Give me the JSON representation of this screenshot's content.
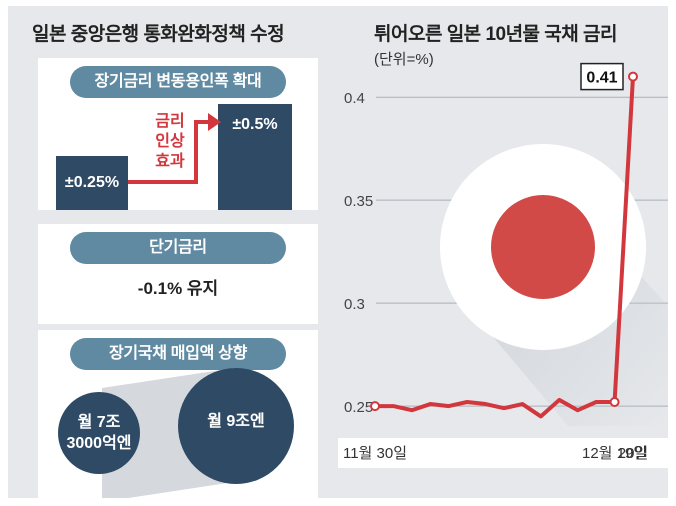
{
  "left": {
    "title": "일본 중앙은행 통화완화정책 수정",
    "card1": {
      "header": "장기금리 변동용인폭 확대",
      "before": "±0.25%",
      "after": "±0.5%",
      "effect": "금리\n인상\n효과"
    },
    "card2": {
      "header": "단기금리",
      "value": "-0.1% 유지"
    },
    "card3": {
      "header": "장기국채 매입액 상향",
      "before": "월 7조\n3000억엔",
      "after": "월 9조엔"
    }
  },
  "colors": {
    "navy": "#2e4a65",
    "steel": "#5f8aa1",
    "red": "#d2373d",
    "bg": "#e6e8eb"
  },
  "chart_data": {
    "type": "line",
    "title": "튀어오른 일본 10년물 국채 금리",
    "subtitle": "(단위=%)",
    "ylim": [
      0.235,
      0.42
    ],
    "yticks": [
      0.25,
      0.3,
      0.35,
      0.4
    ],
    "ytick_labels": [
      "0.25",
      "0.3",
      "0.35",
      "0.4"
    ],
    "xtick_labels": [
      {
        "index": 0,
        "label": "11월 30일"
      },
      {
        "index": 13,
        "label": "12월 19일"
      },
      {
        "index": 14,
        "label": "20일"
      }
    ],
    "series": [
      {
        "values": [
          0.25,
          0.25,
          0.248,
          0.251,
          0.25,
          0.252,
          0.251,
          0.249,
          0.251,
          0.245,
          0.253,
          0.248,
          0.252,
          0.252,
          0.41
        ]
      }
    ],
    "annotation": {
      "index": 14,
      "label": "0.41"
    },
    "grid": true
  }
}
